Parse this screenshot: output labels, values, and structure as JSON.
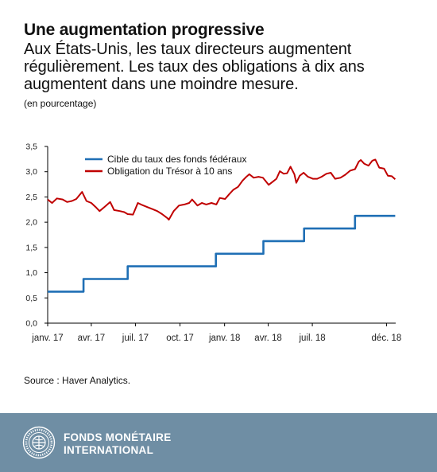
{
  "header": {
    "title": "Une augmentation progressive",
    "subtitle": "Aux États-Unis, les taux directeurs augmentent régulièrement. Les taux des obligations à dix ans augmentent dans une moindre mesure.",
    "units": "(en pourcentage)"
  },
  "source": "Source : Haver Analytics.",
  "footer": {
    "org_line1": "FONDS MONÉTAIRE",
    "org_line2": "INTERNATIONAL",
    "logo_text": "FONDS MONÉTAIRE INTERNATIONAL"
  },
  "chart_data": {
    "type": "line",
    "title": "Une augmentation progressive",
    "ylabel": "",
    "xlabel": "",
    "ylim": [
      0,
      3.5
    ],
    "yticks": [
      "0,0",
      "0,5",
      "1,0",
      "1,5",
      "2,0",
      "2,5",
      "3,0",
      "3,5"
    ],
    "xlim": [
      "2017-01-01",
      "2018-12-20"
    ],
    "xticks": [
      {
        "date": "2017-01-01",
        "label": "janv. 17"
      },
      {
        "date": "2017-04-01",
        "label": "avr. 17"
      },
      {
        "date": "2017-07-01",
        "label": "juil. 17"
      },
      {
        "date": "2017-10-01",
        "label": "oct. 17"
      },
      {
        "date": "2018-01-01",
        "label": "janv. 18"
      },
      {
        "date": "2018-04-01",
        "label": "avr. 18"
      },
      {
        "date": "2018-07-01",
        "label": "juil. 18"
      },
      {
        "date": "2018-12-01",
        "label": "déc. 18"
      }
    ],
    "grid": false,
    "legend": "top-left",
    "series": [
      {
        "name": "Cible du taux des fonds fédéraux",
        "color": "#1f6fb5",
        "step": true,
        "points": [
          [
            "2017-01-01",
            0.625
          ],
          [
            "2017-03-16",
            0.875
          ],
          [
            "2017-06-15",
            1.125
          ],
          [
            "2017-12-14",
            1.375
          ],
          [
            "2018-03-22",
            1.625
          ],
          [
            "2018-06-14",
            1.875
          ],
          [
            "2018-09-27",
            2.125
          ],
          [
            "2018-12-19",
            2.125
          ]
        ]
      },
      {
        "name": "Obligation du Trésor à 10 ans",
        "color": "#c00000",
        "step": false,
        "points": [
          [
            "2017-01-01",
            2.45
          ],
          [
            "2017-01-10",
            2.38
          ],
          [
            "2017-01-20",
            2.47
          ],
          [
            "2017-02-01",
            2.45
          ],
          [
            "2017-02-10",
            2.4
          ],
          [
            "2017-02-20",
            2.42
          ],
          [
            "2017-03-01",
            2.46
          ],
          [
            "2017-03-13",
            2.6
          ],
          [
            "2017-03-22",
            2.42
          ],
          [
            "2017-04-01",
            2.38
          ],
          [
            "2017-04-10",
            2.3
          ],
          [
            "2017-04-18",
            2.22
          ],
          [
            "2017-04-28",
            2.3
          ],
          [
            "2017-05-10",
            2.4
          ],
          [
            "2017-05-18",
            2.24
          ],
          [
            "2017-05-30",
            2.22
          ],
          [
            "2017-06-08",
            2.2
          ],
          [
            "2017-06-15",
            2.16
          ],
          [
            "2017-06-26",
            2.15
          ],
          [
            "2017-07-06",
            2.38
          ],
          [
            "2017-07-15",
            2.34
          ],
          [
            "2017-07-25",
            2.3
          ],
          [
            "2017-08-05",
            2.26
          ],
          [
            "2017-08-15",
            2.22
          ],
          [
            "2017-08-25",
            2.16
          ],
          [
            "2017-09-05",
            2.08
          ],
          [
            "2017-09-08",
            2.05
          ],
          [
            "2017-09-18",
            2.22
          ],
          [
            "2017-09-29",
            2.33
          ],
          [
            "2017-10-10",
            2.35
          ],
          [
            "2017-10-20",
            2.38
          ],
          [
            "2017-10-26",
            2.45
          ],
          [
            "2017-11-06",
            2.33
          ],
          [
            "2017-11-15",
            2.38
          ],
          [
            "2017-11-24",
            2.35
          ],
          [
            "2017-12-05",
            2.38
          ],
          [
            "2017-12-15",
            2.35
          ],
          [
            "2017-12-22",
            2.48
          ],
          [
            "2018-01-02",
            2.46
          ],
          [
            "2018-01-10",
            2.55
          ],
          [
            "2018-01-19",
            2.64
          ],
          [
            "2018-01-29",
            2.7
          ],
          [
            "2018-02-07",
            2.82
          ],
          [
            "2018-02-15",
            2.9
          ],
          [
            "2018-02-21",
            2.95
          ],
          [
            "2018-03-02",
            2.88
          ],
          [
            "2018-03-12",
            2.9
          ],
          [
            "2018-03-21",
            2.88
          ],
          [
            "2018-04-02",
            2.74
          ],
          [
            "2018-04-10",
            2.8
          ],
          [
            "2018-04-18",
            2.86
          ],
          [
            "2018-04-25",
            3.01
          ],
          [
            "2018-05-03",
            2.96
          ],
          [
            "2018-05-10",
            2.97
          ],
          [
            "2018-05-17",
            3.1
          ],
          [
            "2018-05-25",
            2.95
          ],
          [
            "2018-05-29",
            2.78
          ],
          [
            "2018-06-05",
            2.92
          ],
          [
            "2018-06-13",
            2.98
          ],
          [
            "2018-06-22",
            2.9
          ],
          [
            "2018-07-02",
            2.86
          ],
          [
            "2018-07-11",
            2.86
          ],
          [
            "2018-07-20",
            2.9
          ],
          [
            "2018-07-30",
            2.96
          ],
          [
            "2018-08-08",
            2.98
          ],
          [
            "2018-08-17",
            2.86
          ],
          [
            "2018-08-28",
            2.88
          ],
          [
            "2018-09-07",
            2.94
          ],
          [
            "2018-09-17",
            3.02
          ],
          [
            "2018-09-27",
            3.05
          ],
          [
            "2018-10-05",
            3.2
          ],
          [
            "2018-10-09",
            3.23
          ],
          [
            "2018-10-16",
            3.16
          ],
          [
            "2018-10-25",
            3.12
          ],
          [
            "2018-11-02",
            3.22
          ],
          [
            "2018-11-08",
            3.24
          ],
          [
            "2018-11-16",
            3.08
          ],
          [
            "2018-11-26",
            3.06
          ],
          [
            "2018-12-04",
            2.92
          ],
          [
            "2018-12-12",
            2.91
          ],
          [
            "2018-12-19",
            2.85
          ]
        ]
      }
    ]
  }
}
